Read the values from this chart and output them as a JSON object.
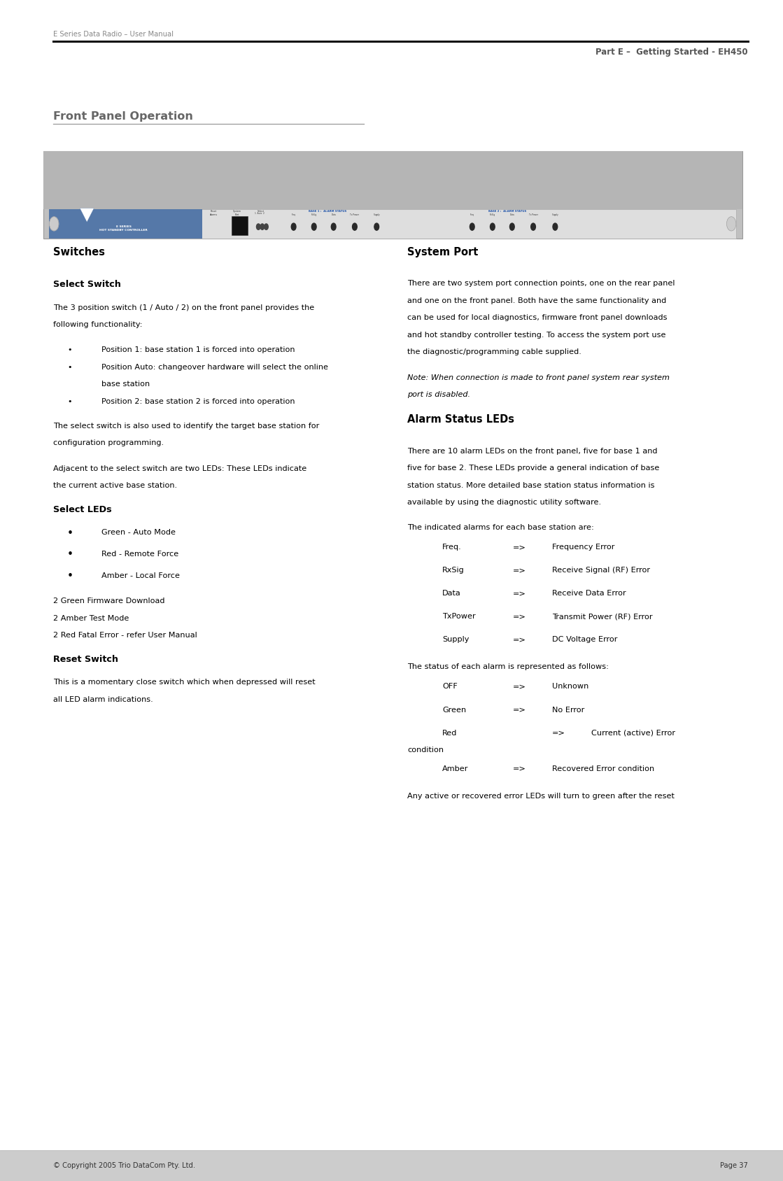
{
  "page_width": 11.19,
  "page_height": 16.88,
  "bg_color": "#ffffff",
  "header_left": "E Series Data Radio – User Manual",
  "header_right": "Part E –  Getting Started - EH450",
  "footer_left": "© Copyright 2005 Trio DataCom Pty. Ltd.",
  "footer_right": "Page 37",
  "footer_bg": "#cccccc",
  "section_title": "Front Panel Operation",
  "col1_heading1": "Switches",
  "col1_heading2": "Select Switch",
  "col1_para1a": "The 3 position switch (1 / Auto / 2) on the front panel provides the",
  "col1_para1b": "following functionality:",
  "col1_bullets1": [
    [
      "Position 1: base station 1 is forced into operation"
    ],
    [
      "Position Auto: changeover hardware will select the online",
      "base station"
    ],
    [
      "Position 2: base station 2 is forced into operation"
    ]
  ],
  "col1_para2a": "The select switch is also used to identify the target base station for",
  "col1_para2b": "configuration programming.",
  "col1_para3a": "Adjacent to the select switch are two LEDs: These LEDs indicate",
  "col1_para3b": "the current active base station.",
  "col1_heading3": "Select LEDs",
  "col1_bullets2": [
    "Green - Auto Mode",
    "Red - Remote Force",
    "Amber - Local Force"
  ],
  "col1_extra_lines": [
    "2 Green Firmware Download",
    "2 Amber Test Mode",
    "2 Red Fatal Error - refer User Manual"
  ],
  "col1_heading4": "Reset Switch",
  "col1_para4a": "This is a momentary close switch which when depressed will reset",
  "col1_para4b": "all LED alarm indications.",
  "col2_heading1": "System Port",
  "col2_para1": [
    "There are two system port connection points, one on the rear panel",
    "and one on the front panel. Both have the same functionality and",
    "can be used for local diagnostics, firmware front panel downloads",
    "and hot standby controller testing. To access the system port use",
    "the diagnostic/programming cable supplied."
  ],
  "col2_note": [
    "Note: When connection is made to front panel system rear system",
    "port is disabled."
  ],
  "col2_heading2": "Alarm Status LEDs",
  "col2_para2": [
    "There are 10 alarm LEDs on the front panel, five for base 1 and",
    "five for base 2. These LEDs provide a general indication of base",
    "station status. More detailed base station status information is",
    "available by using the diagnostic utility software."
  ],
  "col2_para3": "The indicated alarms for each base station are:",
  "col2_table1": [
    [
      "Freq.",
      "=>",
      "Frequency Error"
    ],
    [
      "RxSig",
      "=>",
      "Receive Signal (RF) Error"
    ],
    [
      "Data",
      "=>",
      "Receive Data Error"
    ],
    [
      "TxPower",
      "=>",
      "Transmit Power (RF) Error"
    ],
    [
      "Supply",
      "=>",
      "DC Voltage Error"
    ]
  ],
  "col2_para4": "The status of each alarm is represented as follows:",
  "col2_table2": [
    [
      "OFF",
      "=>",
      "Unknown"
    ],
    [
      "Green",
      "=>",
      "No Error"
    ],
    [
      "Red",
      "",
      "=>",
      "Current (active) Error",
      "condition"
    ],
    [
      "Amber",
      "=>",
      "Recovered Error condition"
    ]
  ],
  "col2_para5": "Any active or recovered error LEDs will turn to green after the reset",
  "header_line_color": "#000000",
  "section_title_color": "#666666",
  "heading_color": "#000000",
  "text_color": "#000000"
}
